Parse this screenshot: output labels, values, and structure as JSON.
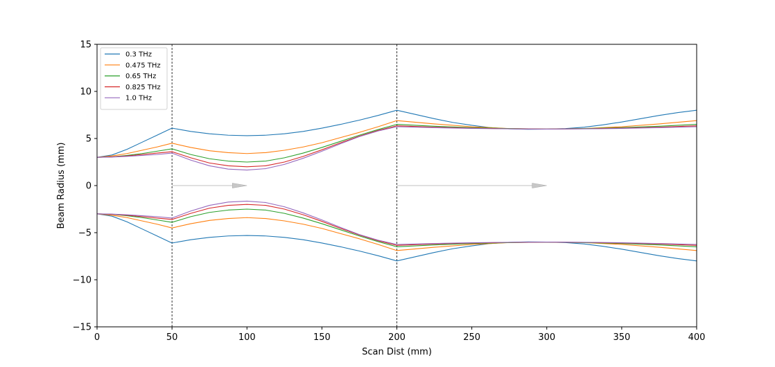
{
  "chart_data": {
    "type": "line",
    "title": "",
    "xlabel": "Scan Dist (mm)",
    "ylabel": "Beam Radius (mm)",
    "xlim": [
      0,
      400
    ],
    "ylim": [
      -15,
      15
    ],
    "xticks": [
      0,
      50,
      100,
      150,
      200,
      250,
      300,
      350,
      400
    ],
    "yticks": [
      -15,
      -10,
      -5,
      0,
      5,
      10,
      15
    ],
    "grid": false,
    "legend_position": "top-left",
    "vertical_lines": [
      50,
      200
    ],
    "arrows": [
      {
        "from": [
          50,
          0
        ],
        "to": [
          100,
          0
        ]
      },
      {
        "from": [
          200,
          0
        ],
        "to": [
          300,
          0
        ]
      }
    ],
    "series": [
      {
        "name": "0.3 THz",
        "color": "#1f77b4",
        "x": [
          0,
          10,
          20,
          30,
          40,
          50,
          62.5,
          75,
          87.5,
          100,
          112.5,
          125,
          137.5,
          150,
          162.5,
          175,
          187.5,
          200,
          212.5,
          225,
          237.5,
          250,
          262.5,
          275,
          287.5,
          300,
          312.5,
          325,
          337.5,
          350,
          362.5,
          375,
          387.5,
          400
        ],
        "upper": [
          3.0,
          3.25,
          3.85,
          4.6,
          5.35,
          6.1,
          5.75,
          5.5,
          5.35,
          5.3,
          5.35,
          5.5,
          5.75,
          6.1,
          6.5,
          6.95,
          7.45,
          8.0,
          7.55,
          7.1,
          6.7,
          6.4,
          6.15,
          6.02,
          5.98,
          6.0,
          6.05,
          6.2,
          6.45,
          6.75,
          7.1,
          7.45,
          7.75,
          8.0
        ],
        "lower": [
          -3.0,
          -3.25,
          -3.85,
          -4.6,
          -5.35,
          -6.1,
          -5.75,
          -5.5,
          -5.35,
          -5.3,
          -5.35,
          -5.5,
          -5.75,
          -6.1,
          -6.5,
          -6.95,
          -7.45,
          -8.0,
          -7.55,
          -7.1,
          -6.7,
          -6.4,
          -6.15,
          -6.02,
          -5.98,
          -6.0,
          -6.05,
          -6.2,
          -6.45,
          -6.75,
          -7.1,
          -7.45,
          -7.75,
          -8.0
        ]
      },
      {
        "name": "0.475 THz",
        "color": "#ff7f0e",
        "x": [
          0,
          10,
          20,
          30,
          40,
          50,
          62.5,
          75,
          87.5,
          100,
          112.5,
          125,
          137.5,
          150,
          162.5,
          175,
          187.5,
          200,
          225,
          250,
          275,
          300,
          325,
          350,
          375,
          400
        ],
        "upper": [
          3.0,
          3.15,
          3.4,
          3.75,
          4.1,
          4.5,
          4.05,
          3.7,
          3.5,
          3.4,
          3.5,
          3.75,
          4.1,
          4.55,
          5.1,
          5.65,
          6.25,
          6.9,
          6.55,
          6.25,
          6.05,
          6.0,
          6.05,
          6.25,
          6.55,
          6.9
        ],
        "lower": [
          -3.0,
          -3.15,
          -3.4,
          -3.75,
          -4.1,
          -4.5,
          -4.05,
          -3.7,
          -3.5,
          -3.4,
          -3.5,
          -3.75,
          -4.1,
          -4.55,
          -5.1,
          -5.65,
          -6.25,
          -6.9,
          -6.55,
          -6.25,
          -6.05,
          -6.0,
          -6.05,
          -6.25,
          -6.55,
          -6.9
        ]
      },
      {
        "name": "0.65 THz",
        "color": "#2ca02c",
        "x": [
          0,
          10,
          20,
          30,
          40,
          50,
          62.5,
          75,
          87.5,
          100,
          112.5,
          125,
          137.5,
          150,
          162.5,
          175,
          187.5,
          200,
          225,
          250,
          275,
          300,
          325,
          350,
          375,
          400
        ],
        "upper": [
          3.0,
          3.05,
          3.2,
          3.4,
          3.65,
          3.9,
          3.3,
          2.85,
          2.6,
          2.5,
          2.6,
          2.95,
          3.45,
          4.05,
          4.7,
          5.35,
          5.95,
          6.5,
          6.3,
          6.15,
          6.05,
          6.0,
          6.05,
          6.15,
          6.3,
          6.5
        ],
        "lower": [
          -3.0,
          -3.05,
          -3.2,
          -3.4,
          -3.65,
          -3.9,
          -3.3,
          -2.85,
          -2.6,
          -2.5,
          -2.6,
          -2.95,
          -3.45,
          -4.05,
          -4.7,
          -5.35,
          -5.95,
          -6.5,
          -6.3,
          -6.15,
          -6.05,
          -6.0,
          -6.05,
          -6.15,
          -6.3,
          -6.5
        ]
      },
      {
        "name": "0.825 THz",
        "color": "#d62728",
        "x": [
          0,
          10,
          20,
          30,
          40,
          50,
          62.5,
          75,
          87.5,
          100,
          112.5,
          125,
          137.5,
          150,
          162.5,
          175,
          187.5,
          200,
          225,
          250,
          275,
          300,
          325,
          350,
          375,
          400
        ],
        "upper": [
          3.0,
          3.05,
          3.15,
          3.3,
          3.45,
          3.6,
          2.95,
          2.4,
          2.1,
          2.0,
          2.1,
          2.5,
          3.1,
          3.8,
          4.55,
          5.25,
          5.85,
          6.35,
          6.2,
          6.1,
          6.03,
          6.0,
          6.03,
          6.1,
          6.2,
          6.35
        ],
        "lower": [
          -3.0,
          -3.05,
          -3.15,
          -3.3,
          -3.45,
          -3.6,
          -2.95,
          -2.4,
          -2.1,
          -2.0,
          -2.1,
          -2.5,
          -3.1,
          -3.8,
          -4.55,
          -5.25,
          -5.85,
          -6.35,
          -6.2,
          -6.1,
          -6.03,
          -6.0,
          -6.03,
          -6.1,
          -6.2,
          -6.35
        ]
      },
      {
        "name": "1.0 THz",
        "color": "#9467bd",
        "x": [
          0,
          10,
          20,
          30,
          40,
          50,
          62.5,
          75,
          87.5,
          100,
          112.5,
          125,
          137.5,
          150,
          162.5,
          175,
          187.5,
          200,
          225,
          250,
          275,
          300,
          325,
          350,
          375,
          400
        ],
        "upper": [
          3.0,
          3.03,
          3.1,
          3.2,
          3.3,
          3.45,
          2.7,
          2.1,
          1.75,
          1.65,
          1.8,
          2.25,
          2.9,
          3.65,
          4.45,
          5.2,
          5.8,
          6.25,
          6.15,
          6.07,
          6.02,
          6.0,
          6.02,
          6.07,
          6.15,
          6.25
        ],
        "lower": [
          -3.0,
          -3.03,
          -3.1,
          -3.2,
          -3.3,
          -3.45,
          -2.7,
          -2.1,
          -1.75,
          -1.65,
          -1.8,
          -2.25,
          -2.9,
          -3.65,
          -4.45,
          -5.2,
          -5.8,
          -6.25,
          -6.15,
          -6.07,
          -6.02,
          -6.0,
          -6.02,
          -6.07,
          -6.15,
          -6.25
        ]
      }
    ]
  }
}
